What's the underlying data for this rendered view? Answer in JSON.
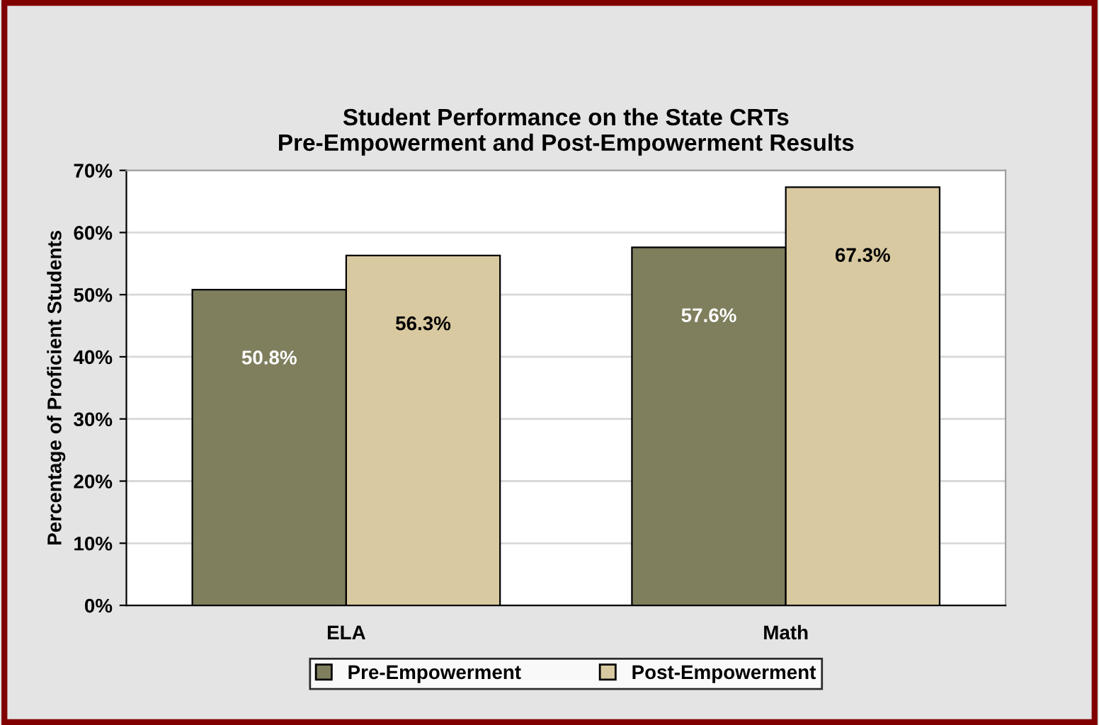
{
  "chart_data": {
    "type": "bar",
    "title": "Student Performance on the State CRTs\nPre-Empowerment and Post-Empowerment Results",
    "ylabel": "Percentage of Proficient Students",
    "categories": [
      "ELA",
      "Math"
    ],
    "series": [
      {
        "name": "Pre-Empowerment",
        "color": "#7f7f5e",
        "values": [
          50.8,
          57.6
        ],
        "value_labels": [
          "50.8%",
          "57.6%"
        ]
      },
      {
        "name": "Post-Empowerment",
        "color": "#d9c9a0",
        "values": [
          56.3,
          67.3
        ],
        "value_labels": [
          "56.3%",
          "67.3%"
        ]
      }
    ],
    "ylim": [
      0,
      70
    ],
    "yticks": [
      {
        "value": 0,
        "label": "0%"
      },
      {
        "value": 10,
        "label": "10%"
      },
      {
        "value": 20,
        "label": "20%"
      },
      {
        "value": 30,
        "label": "30%"
      },
      {
        "value": 40,
        "label": "40%"
      },
      {
        "value": 50,
        "label": "50%"
      },
      {
        "value": 60,
        "label": "60%"
      },
      {
        "value": 70,
        "label": "70%"
      }
    ],
    "grid": "y",
    "legend": "bottom"
  }
}
